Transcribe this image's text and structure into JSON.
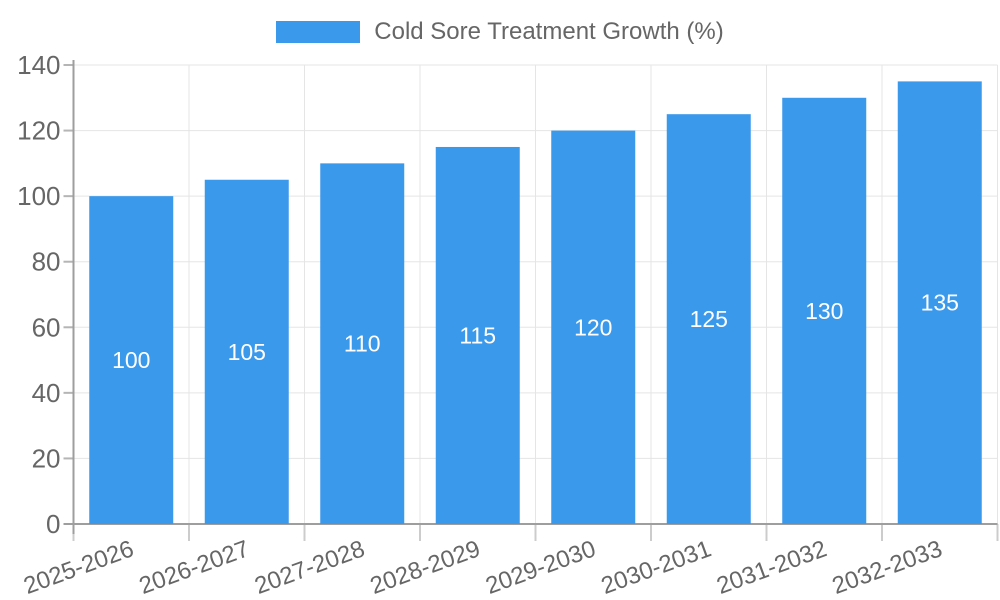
{
  "legend": {
    "label": "Cold Sore Treatment Growth (%)"
  },
  "chart_data": {
    "type": "bar",
    "title": "Cold Sore Treatment Growth (%)",
    "categories": [
      "2025-2026",
      "2026-2027",
      "2027-2028",
      "2028-2029",
      "2029-2030",
      "2030-2031",
      "2031-2032",
      "2032-2033"
    ],
    "values": [
      100,
      105,
      110,
      115,
      120,
      125,
      130,
      135
    ],
    "bar_labels": [
      "100",
      "105",
      "110",
      "115",
      "120",
      "125",
      "130",
      "135"
    ],
    "xlabel": "",
    "ylabel": "",
    "ylim": [
      0,
      140
    ],
    "yticks": [
      0,
      20,
      40,
      60,
      80,
      100,
      120,
      140
    ],
    "grid": true,
    "legend_position": "top-center",
    "x_tick_rotation_deg": -20,
    "colors": {
      "bar": "#3b99ec",
      "bar_label": "#ffffff",
      "grid": "#e5e5e5",
      "axis": "#9e9e9e",
      "bottom_tick": "#cccccc",
      "left_tick": "#b5b5b5",
      "tick_label": "#666666",
      "legend_text": "#666666",
      "background": "#ffffff"
    }
  }
}
